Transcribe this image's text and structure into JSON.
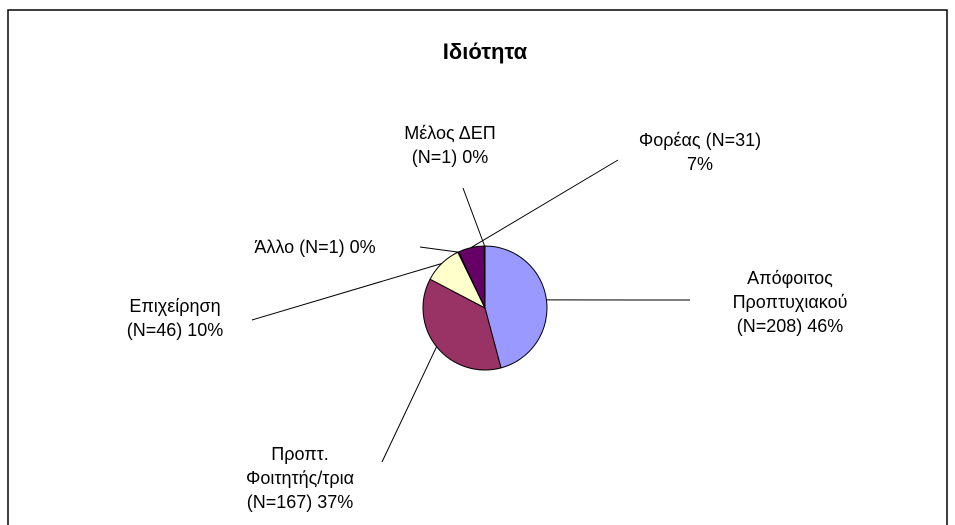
{
  "chart_data": {
    "type": "pie",
    "title": "Ιδιότητα",
    "categories": [
      "Απόφοιτος Προπτυχιακού (N=208)",
      "Προπτ. Φοιτητής/τρια (N=167)",
      "Επιχείρηση (N=46)",
      "Άλλο (N=1)",
      "Φορέας (N=31)",
      "Μέλος ΔΕΠ (N=1)"
    ],
    "values": [
      45.8,
      36.8,
      10.1,
      0.2,
      6.8,
      0.2
    ],
    "value_labels": [
      "46%",
      "37%",
      "10%",
      "0%",
      "7%",
      "0%"
    ],
    "colors": [
      "#9999FF",
      "#993366",
      "#FFFFCC",
      "#CCFFFF",
      "#660066",
      "#FF8080"
    ]
  }
}
